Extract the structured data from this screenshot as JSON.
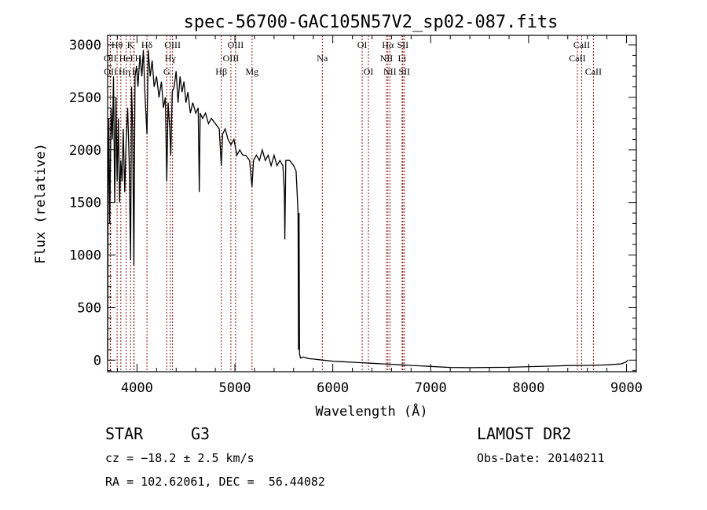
{
  "chart_data": {
    "type": "line",
    "title": "spec-56700-GAC105N57V2_sp02-087.fits",
    "xlabel": "Wavelength (Å)",
    "ylabel": "Flux (relative)",
    "xlim": [
      3700,
      9100
    ],
    "ylim": [
      -110,
      3090
    ],
    "x_ticks": [
      4000,
      5000,
      6000,
      7000,
      8000,
      9000
    ],
    "y_ticks": [
      0,
      500,
      1000,
      1500,
      2000,
      2500,
      3000
    ],
    "grid": false,
    "series": [
      {
        "name": "spectrum",
        "points": [
          [
            3700,
            0
          ],
          [
            3705,
            1500
          ],
          [
            3712,
            2300
          ],
          [
            3722,
            1300
          ],
          [
            3735,
            2400
          ],
          [
            3748,
            2100
          ],
          [
            3760,
            2700
          ],
          [
            3772,
            1500
          ],
          [
            3785,
            2500
          ],
          [
            3797,
            1700
          ],
          [
            3810,
            2300
          ],
          [
            3822,
            1500
          ],
          [
            3835,
            1900
          ],
          [
            3848,
            1700
          ],
          [
            3860,
            2200
          ],
          [
            3875,
            1600
          ],
          [
            3889,
            2100
          ],
          [
            3905,
            2400
          ],
          [
            3920,
            1900
          ],
          [
            3934,
            950
          ],
          [
            3945,
            2600
          ],
          [
            3956,
            2200
          ],
          [
            3968,
            900
          ],
          [
            3980,
            2700
          ],
          [
            3995,
            2800
          ],
          [
            4010,
            2600
          ],
          [
            4030,
            2900
          ],
          [
            4050,
            2700
          ],
          [
            4065,
            2950
          ],
          [
            4080,
            2550
          ],
          [
            4102,
            2150
          ],
          [
            4115,
            2950
          ],
          [
            4135,
            2700
          ],
          [
            4155,
            2850
          ],
          [
            4175,
            2600
          ],
          [
            4200,
            2700
          ],
          [
            4225,
            2500
          ],
          [
            4250,
            2650
          ],
          [
            4270,
            2400
          ],
          [
            4290,
            2500
          ],
          [
            4304,
            1700
          ],
          [
            4318,
            2450
          ],
          [
            4335,
            2200
          ],
          [
            4345,
            1950
          ],
          [
            4360,
            2550
          ],
          [
            4380,
            2600
          ],
          [
            4400,
            2750
          ],
          [
            4420,
            2450
          ],
          [
            4440,
            2700
          ],
          [
            4460,
            2550
          ],
          [
            4480,
            2650
          ],
          [
            4500,
            2450
          ],
          [
            4520,
            2550
          ],
          [
            4545,
            2350
          ],
          [
            4570,
            2450
          ],
          [
            4600,
            2350
          ],
          [
            4625,
            2400
          ],
          [
            4636,
            1600
          ],
          [
            4645,
            2350
          ],
          [
            4670,
            2300
          ],
          [
            4700,
            2350
          ],
          [
            4730,
            2250
          ],
          [
            4760,
            2300
          ],
          [
            4800,
            2250
          ],
          [
            4840,
            2200
          ],
          [
            4861,
            1850
          ],
          [
            4875,
            2150
          ],
          [
            4900,
            2200
          ],
          [
            4930,
            2100
          ],
          [
            4960,
            2050
          ],
          [
            4990,
            2100
          ],
          [
            5020,
            1950
          ],
          [
            5050,
            2000
          ],
          [
            5080,
            1950
          ],
          [
            5110,
            1950
          ],
          [
            5150,
            1900
          ],
          [
            5175,
            1650
          ],
          [
            5190,
            1900
          ],
          [
            5220,
            1950
          ],
          [
            5250,
            1900
          ],
          [
            5280,
            2000
          ],
          [
            5310,
            1900
          ],
          [
            5340,
            1950
          ],
          [
            5370,
            1850
          ],
          [
            5400,
            1950
          ],
          [
            5430,
            1850
          ],
          [
            5460,
            1900
          ],
          [
            5490,
            1850
          ],
          [
            5505,
            1600
          ],
          [
            5510,
            1150
          ],
          [
            5520,
            1900
          ],
          [
            5560,
            1900
          ],
          [
            5600,
            1850
          ],
          [
            5625,
            1800
          ],
          [
            5635,
            1600
          ],
          [
            5645,
            1400
          ],
          [
            5650,
            100
          ],
          [
            5655,
            1400
          ],
          [
            5660,
            60
          ],
          [
            5670,
            20
          ],
          [
            5700,
            30
          ],
          [
            5750,
            15
          ],
          [
            5800,
            10
          ],
          [
            5900,
            0
          ],
          [
            6000,
            -10
          ],
          [
            6100,
            -15
          ],
          [
            6200,
            -20
          ],
          [
            6300,
            -25
          ],
          [
            6400,
            -30
          ],
          [
            6500,
            -35
          ],
          [
            6600,
            -40
          ],
          [
            6700,
            -45
          ],
          [
            6800,
            -50
          ],
          [
            6900,
            -55
          ],
          [
            7000,
            -60
          ],
          [
            7200,
            -70
          ],
          [
            7400,
            -72
          ],
          [
            7600,
            -70
          ],
          [
            7800,
            -68
          ],
          [
            8000,
            -62
          ],
          [
            8200,
            -58
          ],
          [
            8400,
            -52
          ],
          [
            8600,
            -50
          ],
          [
            8800,
            -45
          ],
          [
            8950,
            -35
          ],
          [
            9000,
            -15
          ],
          [
            9010,
            0
          ]
        ]
      }
    ],
    "lines": [
      {
        "label": "Hθ",
        "wave": 3797,
        "row": 0
      },
      {
        "label": "K",
        "wave": 3934,
        "row": 0
      },
      {
        "label": "Hδ",
        "wave": 4102,
        "row": 0
      },
      {
        "label": "OIII",
        "wave": 4363,
        "row": 0
      },
      {
        "label": "OIII",
        "wave": 5007,
        "row": 0
      },
      {
        "label": "OI",
        "wave": 6300,
        "row": 0
      },
      {
        "label": "Hα",
        "wave": 6563,
        "row": 0
      },
      {
        "label": "SII",
        "wave": 6716,
        "row": 0
      },
      {
        "label": "CaII",
        "wave": 8542,
        "row": 0
      },
      {
        "label": "OII",
        "wave": 3727,
        "row": 1
      },
      {
        "label": "HeI",
        "wave": 3889,
        "row": 1
      },
      {
        "label": "Hε",
        "wave": 3970,
        "row": 1
      },
      {
        "label": "Hγ",
        "wave": 4340,
        "row": 1
      },
      {
        "label": "OIII",
        "wave": 4959,
        "row": 1
      },
      {
        "label": "Na",
        "wave": 5893,
        "row": 1
      },
      {
        "label": "NII",
        "wave": 6548,
        "row": 1
      },
      {
        "label": "Li",
        "wave": 6708,
        "row": 1
      },
      {
        "label": "CaII",
        "wave": 8498,
        "row": 1
      },
      {
        "label": "OII",
        "wave": 3729,
        "row": 2
      },
      {
        "label": "Hη",
        "wave": 3835,
        "row": 2
      },
      {
        "label": "H",
        "wave": 3968,
        "row": 2
      },
      {
        "label": "G",
        "wave": 4304,
        "row": 2
      },
      {
        "label": "Hβ",
        "wave": 4861,
        "row": 2
      },
      {
        "label": "Mg",
        "wave": 5175,
        "row": 2
      },
      {
        "label": "OI",
        "wave": 6364,
        "row": 2
      },
      {
        "label": "NII",
        "wave": 6583,
        "row": 2
      },
      {
        "label": "SII",
        "wave": 6731,
        "row": 2
      },
      {
        "label": "CaII",
        "wave": 8662,
        "row": 2
      }
    ],
    "line_color": "#8b1a1a"
  },
  "info": {
    "class": "STAR",
    "subclass": "G3",
    "survey": "LAMOST DR2",
    "cz": "cz = −18.2 ± 2.5 km/s",
    "obs_date": "Obs-Date: 20140211",
    "coords": "RA = 102.62061, DEC =  56.44082"
  }
}
